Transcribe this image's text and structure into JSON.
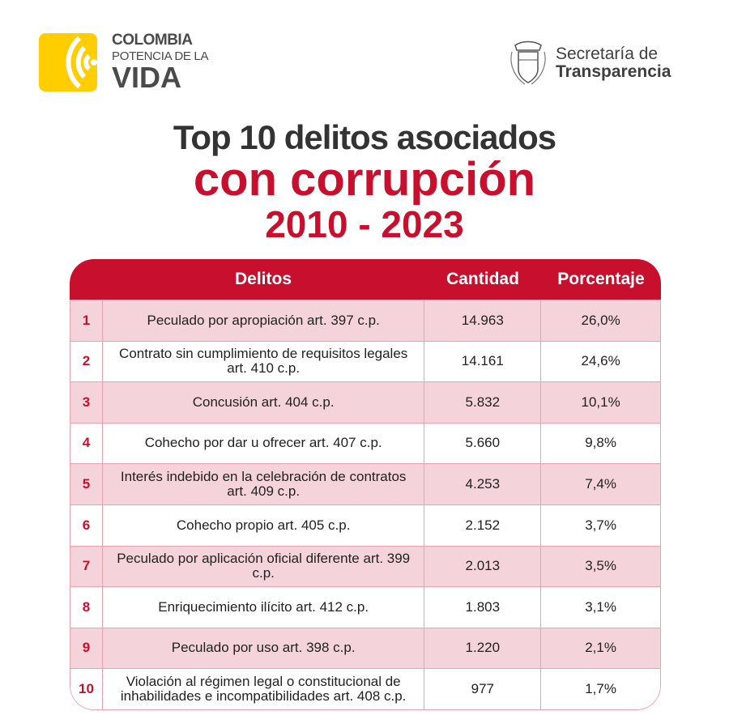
{
  "brand_left": {
    "line1": "COLOMBIA",
    "line2": "POTENCIA DE LA",
    "line3": "VIDA",
    "color": "#ffcd00"
  },
  "brand_right": {
    "line1": "Secretaría de",
    "line2": "Transparencia"
  },
  "title": {
    "line1": "Top 10 delitos asociados",
    "line2": "con corrupción",
    "line3": "2010 - 2023"
  },
  "colors": {
    "accent": "#c8102e",
    "row_alt": "#f4d3da",
    "border": "#e8a2b0"
  },
  "table": {
    "headers": [
      "",
      "Delitos",
      "Cantidad",
      "Porcentaje"
    ],
    "rows": [
      {
        "rank": "1",
        "delito": "Peculado por apropiación art. 397 c.p.",
        "cantidad": "14.963",
        "porcentaje": "26,0%"
      },
      {
        "rank": "2",
        "delito": "Contrato sin cumplimiento de requisitos legales art. 410 c.p.",
        "cantidad": "14.161",
        "porcentaje": "24,6%"
      },
      {
        "rank": "3",
        "delito": "Concusión art. 404 c.p.",
        "cantidad": "5.832",
        "porcentaje": "10,1%"
      },
      {
        "rank": "4",
        "delito": "Cohecho por dar u ofrecer art. 407 c.p.",
        "cantidad": "5.660",
        "porcentaje": "9,8%"
      },
      {
        "rank": "5",
        "delito": "Interés indebido en la celebración de contratos art. 409 c.p.",
        "cantidad": "4.253",
        "porcentaje": "7,4%"
      },
      {
        "rank": "6",
        "delito": "Cohecho propio art. 405 c.p.",
        "cantidad": "2.152",
        "porcentaje": "3,7%"
      },
      {
        "rank": "7",
        "delito": "Peculado por aplicación oficial diferente art. 399 c.p.",
        "cantidad": "2.013",
        "porcentaje": "3,5%"
      },
      {
        "rank": "8",
        "delito": "Enriquecimiento ilícito art. 412 c.p.",
        "cantidad": "1.803",
        "porcentaje": "3,1%"
      },
      {
        "rank": "9",
        "delito": "Peculado por uso art. 398 c.p.",
        "cantidad": "1.220",
        "porcentaje": "2,1%"
      },
      {
        "rank": "10",
        "delito": "Violación al régimen legal o constitucional de inhabilidades e incompatibilidades art. 408 c.p.",
        "cantidad": "977",
        "porcentaje": "1,7%"
      }
    ]
  }
}
